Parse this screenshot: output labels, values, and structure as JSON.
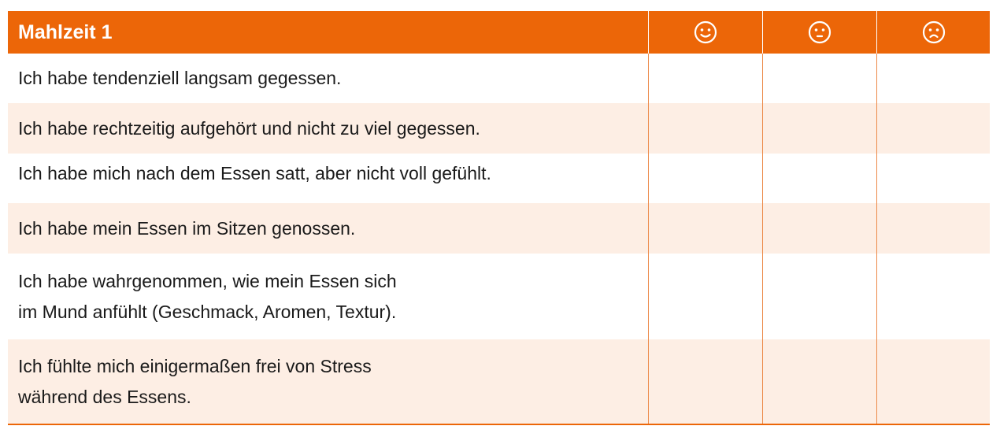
{
  "table": {
    "title": "Mahlzeit 1",
    "columns": [
      {
        "icon": "smiley-happy-icon"
      },
      {
        "icon": "smiley-neutral-icon"
      },
      {
        "icon": "smiley-sad-icon"
      }
    ],
    "rows": [
      {
        "text": "Ich habe tendenziell langsam gegessen."
      },
      {
        "text": "Ich habe rechtzeitig aufgehört und nicht zu viel gegessen."
      },
      {
        "text": "Ich habe mich nach dem Essen satt, aber nicht voll gefühlt."
      },
      {
        "text": "Ich habe mein Essen im Sitzen genossen."
      },
      {
        "line1": "Ich habe wahrgenommen, wie mein Essen sich",
        "line2": "im Mund anfühlt (Geschmack, Aromen, Textur)."
      },
      {
        "line1": "Ich fühlte mich einigermaßen frei von Stress",
        "line2": "während des Essens."
      }
    ],
    "colors": {
      "accent": "#ec6608",
      "row_tint": "#fdeee4"
    }
  }
}
